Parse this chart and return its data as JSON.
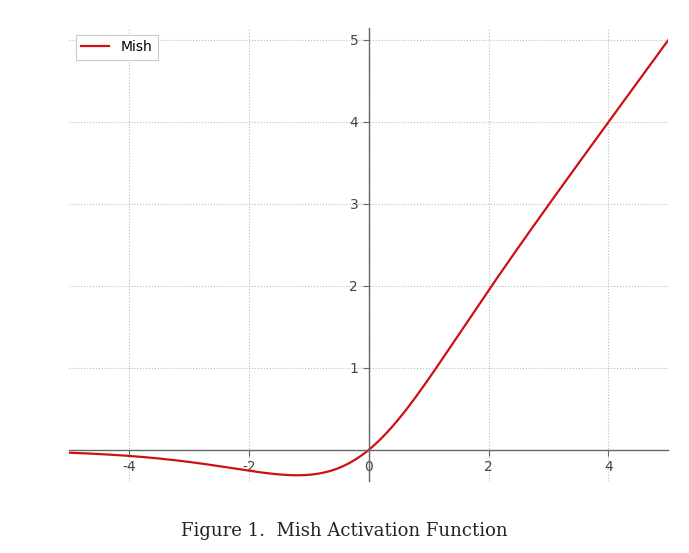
{
  "caption": "Figure 1.  Mish Activation Function",
  "legend_label": "Mish",
  "line_color": "#cc1111",
  "line_width": 1.6,
  "x_min": -5.0,
  "x_max": 5.0,
  "y_min": -0.38,
  "y_max": 5.15,
  "x_ticks": [
    -4,
    -2,
    0,
    2,
    4
  ],
  "y_ticks": [
    1,
    2,
    3,
    4,
    5
  ],
  "grid_color": "#bbbbbb",
  "grid_linestyle": ":",
  "grid_linewidth": 0.8,
  "background_color": "#ffffff",
  "spine_color": "#666666",
  "tick_label_fontsize": 10,
  "caption_fontsize": 13,
  "legend_fontsize": 10,
  "num_points": 2000,
  "fig_width": 6.89,
  "fig_height": 5.53,
  "dpi": 100
}
